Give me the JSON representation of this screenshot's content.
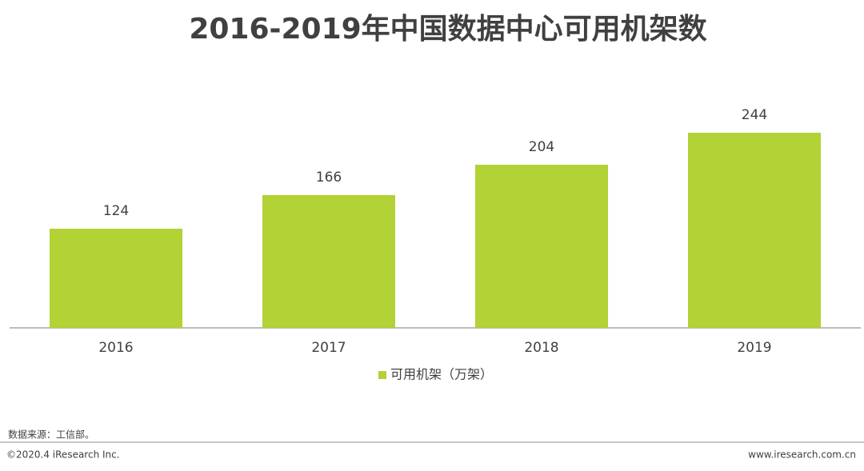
{
  "chart_data": {
    "type": "bar",
    "title": "2016-2019年中国数据中心可用机架数",
    "categories": [
      "2016",
      "2017",
      "2018",
      "2019"
    ],
    "series": [
      {
        "name": "可用机架（万架）",
        "color": "#b2d235",
        "values": [
          124,
          166,
          204,
          244
        ]
      }
    ],
    "data_labels": true,
    "legend": "bottom"
  },
  "footer": {
    "source": "数据来源：工信部。",
    "copyright": "©2020.4 iResearch Inc.",
    "website": "www.iresearch.com.cn"
  }
}
